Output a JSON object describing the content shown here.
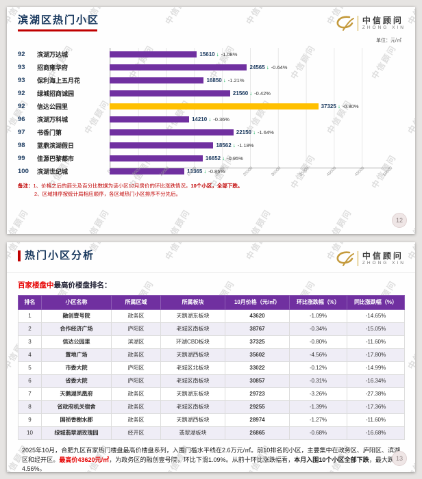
{
  "watermark": {
    "text": "中信顾问"
  },
  "logo": {
    "brand": "中信顾问",
    "sub": "ZHONG XIN"
  },
  "chart_data": {
    "type": "bar",
    "orientation": "horizontal",
    "title": "滨湖区热门小区",
    "unit": "元/㎡",
    "xlim": [
      0,
      50000
    ],
    "x_ticks": [
      "0",
      "5000",
      "10000",
      "15000",
      "20000",
      "25000",
      "30000",
      "35000",
      "40000",
      "45000",
      "50000"
    ],
    "grid": true,
    "bar_color": "#7030A0",
    "highlight_color": "#FFC000",
    "arrow": "↓",
    "arrow_color": "#00B050",
    "rows": [
      {
        "rank": "92",
        "name": "滨湖万达城",
        "value": 15610,
        "change": "-1.08%",
        "highlight": false
      },
      {
        "rank": "93",
        "name": "招商雍华府",
        "value": 24565,
        "change": "-0.64%",
        "highlight": false
      },
      {
        "rank": "93",
        "name": "保利海上五月花",
        "value": 16850,
        "change": "-1.21%",
        "highlight": false
      },
      {
        "rank": "92",
        "name": "绿城招商诚园",
        "value": 21560,
        "change": "-0.42%",
        "highlight": false
      },
      {
        "rank": "92",
        "name": "信达公园里",
        "value": 37325,
        "change": "-0.80%",
        "highlight": true
      },
      {
        "rank": "96",
        "name": "滨湖万科城",
        "value": 14210,
        "change": "-0.36%",
        "highlight": false
      },
      {
        "rank": "97",
        "name": "书香门第",
        "value": 22150,
        "change": "-1.64%",
        "highlight": false
      },
      {
        "rank": "98",
        "name": "蓝鼎滨湖假日",
        "value": 18562,
        "change": "-1.18%",
        "highlight": false
      },
      {
        "rank": "99",
        "name": "佳源巴黎都市",
        "value": 16652,
        "change": "-0.95%",
        "highlight": false
      },
      {
        "rank": "100",
        "name": "滨湖世纪城",
        "value": 13365,
        "change": "-0.85%",
        "highlight": false
      }
    ]
  },
  "slide1": {
    "title": "滨湖区热门小区",
    "unit_label": "单位：元/㎡",
    "page_number": "12",
    "note": [
      [
        {
          "text": "备注：",
          "bold": true
        },
        {
          "text": "1、价格之后的箭头及百分比数据为该小区10月房价的环比涨跌情况，",
          "bold": false
        },
        {
          "text": "10个小区，全部下跌。",
          "bold": true
        }
      ],
      [
        {
          "text": "2、区域排序按统计局相应顺序，各区域热门小区排序不分先后。",
          "bold": false
        }
      ]
    ]
  },
  "slide2": {
    "title": "热门小区分析",
    "subtitle": [
      {
        "text": "百家楼盘中",
        "red": true
      },
      {
        "text": "最高价楼盘排名：",
        "red": false
      }
    ],
    "page_number": "13",
    "table": {
      "headers": [
        "排名",
        "小区名称",
        "所属区域",
        "所属板块",
        "10月价格（元/㎡）",
        "环比涨跌幅（%）",
        "同比涨跌幅（%）"
      ],
      "rows": [
        [
          "1",
          "融创壹号院",
          "政务区",
          "天鹅湖东板块",
          "43620",
          "-1.09%",
          "-14.65%"
        ],
        [
          "2",
          "合作经济广场",
          "庐阳区",
          "老城区南板块",
          "38767",
          "-0.34%",
          "-15.05%"
        ],
        [
          "3",
          "信达公园里",
          "滨湖区",
          "环湖CBD板块",
          "37325",
          "-0.80%",
          "-11.60%"
        ],
        [
          "4",
          "置地广场",
          "政务区",
          "天鹅湖西板块",
          "35602",
          "-4.56%",
          "-17.80%"
        ],
        [
          "5",
          "市委大院",
          "庐阳区",
          "老城区北板块",
          "33022",
          "-0.12%",
          "-14.99%"
        ],
        [
          "6",
          "省委大院",
          "庐阳区",
          "老城区南板块",
          "30857",
          "-0.31%",
          "-16.34%"
        ],
        [
          "7",
          "天鹅湖凤凰府",
          "政务区",
          "天鹅湖东板块",
          "29723",
          "-3.26%",
          "-27.38%"
        ],
        [
          "8",
          "省政府机关宿舍",
          "政务区",
          "老城区南板块",
          "29255",
          "-1.39%",
          "-17.36%"
        ],
        [
          "9",
          "国祯香榭水郡",
          "政务区",
          "天鹅湖西板块",
          "28974",
          "-1.27%",
          "-11.60%"
        ],
        [
          "10",
          "绿城翡翠湖玫瑰园",
          "经开区",
          "翡翠湖板块",
          "26865",
          "-0.68%",
          "-16.68%"
        ]
      ]
    },
    "paragraphs": [
      [
        {
          "text": "2025年10月，合肥九区百家热门楼盘最高价楼盘系列，入围门槛水平线在2.6万元/㎡。前10排名的小区，主要集中在政务区、庐阳区、滨湖区和经开区。",
          "style": "normal"
        },
        {
          "text": "最高价43620元/㎡",
          "style": "red-bold"
        },
        {
          "text": "，为政务区的融创壹号院，环比下滑1.09%。从前十环比涨跌幅看，",
          "style": "normal"
        },
        {
          "text": "本月入围10个小区全部下跌",
          "style": "bold"
        },
        {
          "text": "，最大跌幅4.56%。",
          "style": "normal"
        }
      ],
      [
        {
          "text": "从同比涨跌幅看，",
          "style": "normal"
        },
        {
          "text": "本月价格前十小区同样全部下跌",
          "style": "bold"
        },
        {
          "text": "，政务区融创壹号院同比下跌14.65%，天鹅湖凤凰府跌幅20%以上，合作经济广场、置地广场、省委大院、省政府机关宿舍等小区跌幅超过15%。",
          "style": "normal"
        }
      ]
    ]
  }
}
